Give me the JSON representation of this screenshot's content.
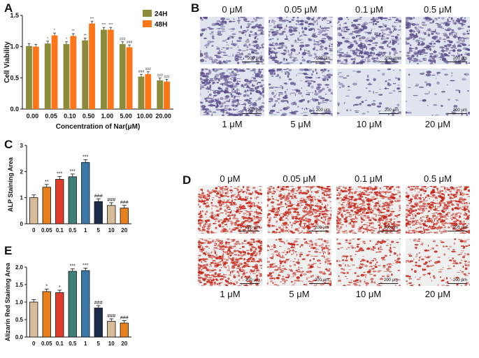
{
  "panels": {
    "A": "A",
    "B": "B",
    "C": "C",
    "D": "D",
    "E": "E"
  },
  "chart_data": [
    {
      "id": "A",
      "type": "bar",
      "ylabel": "Cell Viability",
      "xlabel": "Concentration of Nar(μM)",
      "categories": [
        "0.00",
        "0.05",
        "0.10",
        "0.50",
        "1.00",
        "5.00",
        "10.00",
        "20.00"
      ],
      "ylim": [
        0,
        1.5
      ],
      "yticks": [
        "0.0",
        "0.5",
        "1.0",
        "1.5"
      ],
      "legend_position": "top-right",
      "series": [
        {
          "name": "24H",
          "color": "#8b8b3a",
          "values": [
            1.01,
            1.05,
            1.04,
            1.1,
            1.27,
            1.04,
            0.52,
            0.46
          ],
          "sig": [
            "",
            "*",
            "*",
            "**",
            "***",
            "###",
            "###",
            "###"
          ]
        },
        {
          "name": "48H",
          "color": "#ff7518",
          "values": [
            1.0,
            1.18,
            1.17,
            1.37,
            1.27,
            0.99,
            0.56,
            0.44
          ],
          "sig": [
            "",
            "*",
            "**",
            "***",
            "***",
            "###",
            "###",
            "###"
          ]
        }
      ]
    },
    {
      "id": "C",
      "type": "bar",
      "ylabel": "ALP Staining Area",
      "xlabel": "",
      "categories": [
        "0",
        "0.05",
        "0.1",
        "0.5",
        "1",
        "5",
        "10",
        "20"
      ],
      "ylim": [
        0,
        3
      ],
      "yticks": [
        "0",
        "1",
        "2",
        "3"
      ],
      "colors": [
        "#d8bc9a",
        "#e8801e",
        "#e03c2c",
        "#3e8078",
        "#3b78a8",
        "#1a2c4a",
        "#d8bc9a",
        "#e8801e"
      ],
      "values": [
        1.0,
        1.4,
        1.7,
        1.8,
        2.35,
        0.85,
        0.7,
        0.6
      ],
      "sig": [
        "",
        "**",
        "***",
        "***",
        "***",
        "###",
        "###",
        "###"
      ]
    },
    {
      "id": "E",
      "type": "bar",
      "ylabel": "Alizarin Red Staining Area",
      "xlabel": "",
      "categories": [
        "0",
        "0.05",
        "0.1",
        "0.5",
        "1",
        "5",
        "10",
        "20"
      ],
      "ylim": [
        0,
        2.0
      ],
      "yticks": [
        "0.0",
        "0.5",
        "1.0",
        "1.5",
        "2.0"
      ],
      "colors": [
        "#d8bc9a",
        "#e8801e",
        "#e03c2c",
        "#3e8078",
        "#3b78a8",
        "#1a2c4a",
        "#d8bc9a",
        "#e8801e"
      ],
      "values": [
        1.0,
        1.3,
        1.27,
        1.88,
        1.9,
        0.83,
        0.45,
        0.4
      ],
      "sig": [
        "",
        "*",
        "*",
        "***",
        "***",
        "###",
        "###",
        "###"
      ]
    }
  ],
  "micrographs": {
    "B": {
      "top_labels": [
        "0 μM",
        "0.05 μM",
        "0.1 μM",
        "0.5 μM"
      ],
      "bottom_labels": [
        "1 μM",
        "5 μM",
        "10 μM",
        "20 μM"
      ],
      "scale": "200 μm",
      "stain_color": "#5b4b8a"
    },
    "D": {
      "top_labels": [
        "0 μM",
        "0.05 μM",
        "0.1 μM",
        "0.5 μM"
      ],
      "bottom_labels": [
        "1 μM",
        "5 μM",
        "10 μM",
        "20 μM"
      ],
      "scale": "200 μm",
      "stain_color": "#c41e10"
    }
  }
}
